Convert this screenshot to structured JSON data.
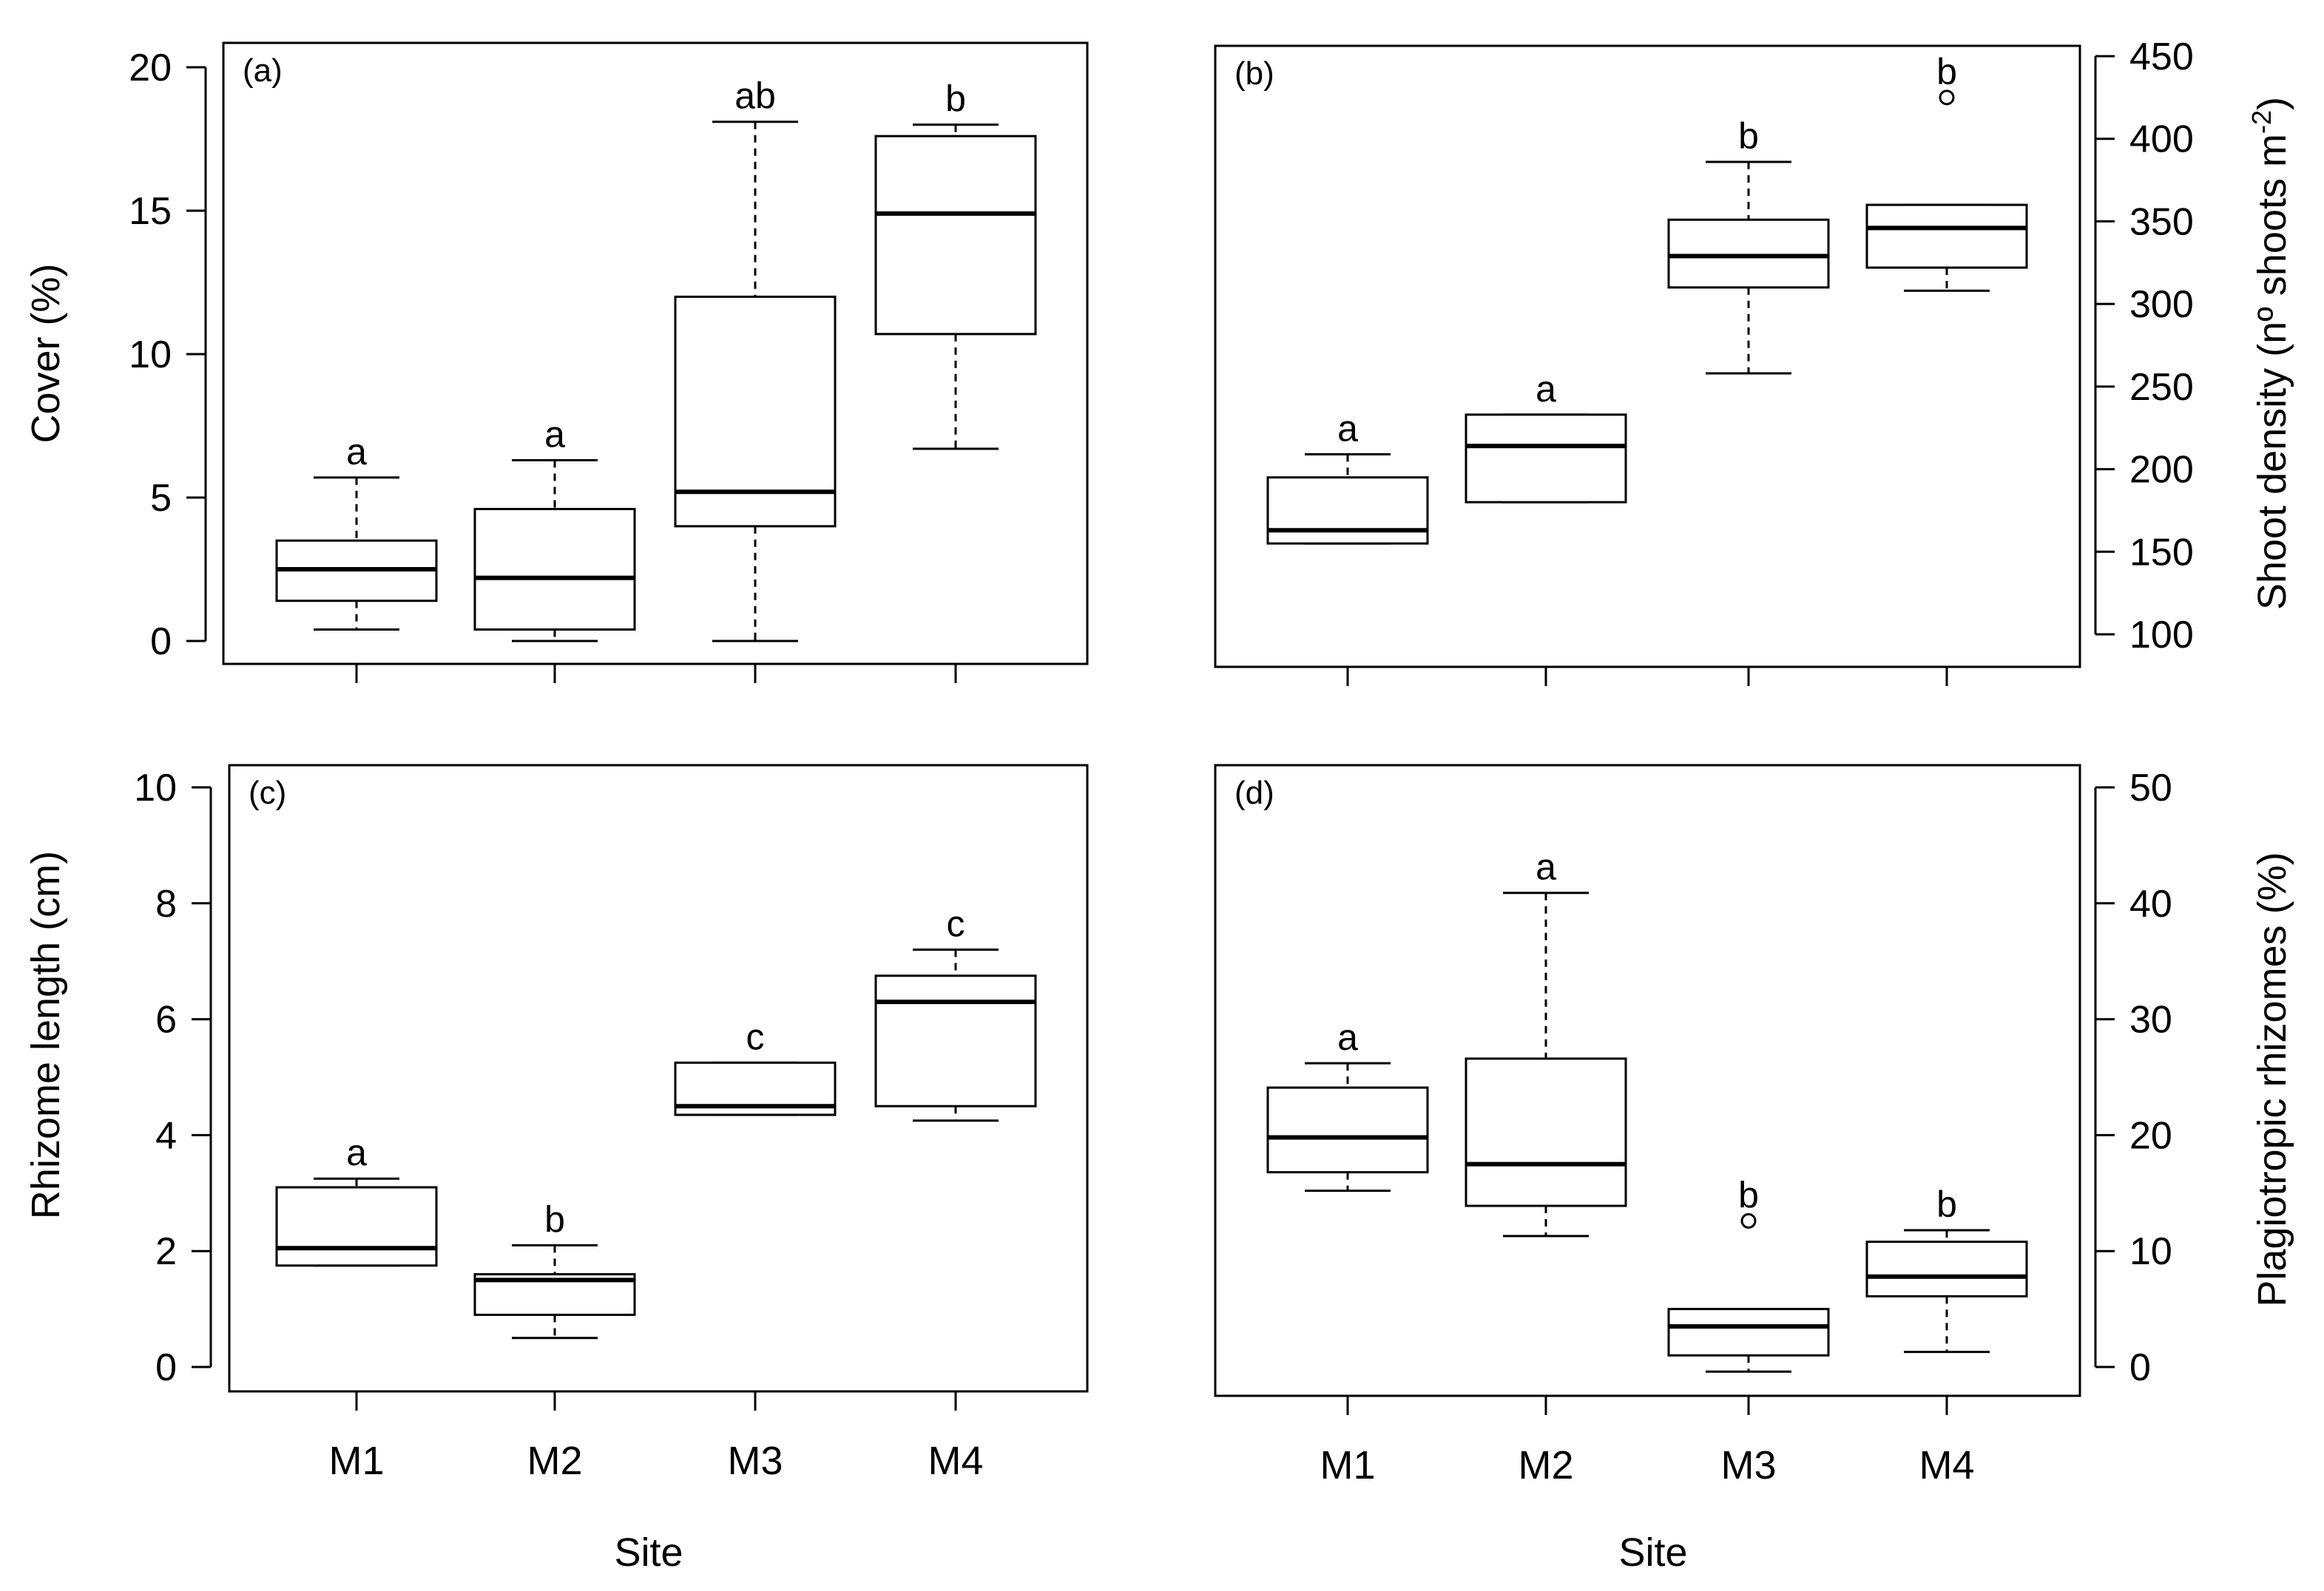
{
  "figure": {
    "x_axis_title": "Site",
    "site_labels": [
      "M1",
      "M2",
      "M3",
      "M4"
    ]
  },
  "chart_data": [
    {
      "panel": "(a)",
      "type": "boxplot",
      "ylabel": "Cover (%)",
      "axis_side": "left",
      "ylim": [
        0,
        20
      ],
      "yticks": [
        0,
        5,
        10,
        15,
        20
      ],
      "categories": [
        "M1",
        "M2",
        "M3",
        "M4"
      ],
      "boxes": [
        {
          "min": 0.4,
          "q1": 1.4,
          "median": 2.5,
          "q3": 3.5,
          "max": 5.7,
          "outliers": [],
          "letter": "a"
        },
        {
          "min": 0.0,
          "q1": 0.4,
          "median": 2.2,
          "q3": 4.6,
          "max": 6.3,
          "outliers": [],
          "letter": "a"
        },
        {
          "min": 0.0,
          "q1": 4.0,
          "median": 5.2,
          "q3": 12.0,
          "max": 18.1,
          "outliers": [],
          "letter": "ab"
        },
        {
          "min": 6.7,
          "q1": 10.7,
          "median": 14.9,
          "q3": 17.6,
          "max": 18.0,
          "outliers": [],
          "letter": "b"
        }
      ]
    },
    {
      "panel": "(b)",
      "type": "boxplot",
      "ylabel": "Shoot density (nº shoots m",
      "ylabel_sup": "-2",
      "ylabel_end": ")",
      "axis_side": "right",
      "ylim": [
        100,
        450
      ],
      "yticks": [
        100,
        150,
        200,
        250,
        300,
        350,
        400,
        450
      ],
      "categories": [
        "M1",
        "M2",
        "M3",
        "M4"
      ],
      "boxes": [
        {
          "min": 155,
          "q1": 155,
          "median": 163,
          "q3": 195,
          "max": 209,
          "outliers": [],
          "letter": "a"
        },
        {
          "min": 180,
          "q1": 180,
          "median": 214,
          "q3": 233,
          "max": 233,
          "outliers": [],
          "letter": "a"
        },
        {
          "min": 258,
          "q1": 310,
          "median": 329,
          "q3": 351,
          "max": 386,
          "outliers": [],
          "letter": "b"
        },
        {
          "min": 308,
          "q1": 322,
          "median": 346,
          "q3": 360,
          "max": 360,
          "outliers": [
            425
          ],
          "letter": "b"
        }
      ]
    },
    {
      "panel": "(c)",
      "type": "boxplot",
      "ylabel": "Rhizome length (cm)",
      "axis_side": "left",
      "ylim": [
        0,
        10
      ],
      "yticks": [
        0,
        2,
        4,
        6,
        8,
        10
      ],
      "categories": [
        "M1",
        "M2",
        "M3",
        "M4"
      ],
      "boxes": [
        {
          "min": 1.75,
          "q1": 1.75,
          "median": 2.05,
          "q3": 3.1,
          "max": 3.25,
          "outliers": [],
          "letter": "a"
        },
        {
          "min": 0.5,
          "q1": 0.9,
          "median": 1.5,
          "q3": 1.6,
          "max": 2.1,
          "outliers": [],
          "letter": "b"
        },
        {
          "min": 4.35,
          "q1": 4.35,
          "median": 4.5,
          "q3": 5.25,
          "max": 5.25,
          "outliers": [],
          "letter": "c"
        },
        {
          "min": 4.25,
          "q1": 4.5,
          "median": 6.3,
          "q3": 6.75,
          "max": 7.2,
          "outliers": [],
          "letter": "c"
        }
      ]
    },
    {
      "panel": "(d)",
      "type": "boxplot",
      "ylabel": "Plagiotropic rhizomes (%)",
      "axis_side": "right",
      "ylim": [
        0,
        50
      ],
      "yticks": [
        0,
        10,
        20,
        30,
        40,
        50
      ],
      "categories": [
        "M1",
        "M2",
        "M3",
        "M4"
      ],
      "boxes": [
        {
          "min": 15.2,
          "q1": 16.8,
          "median": 19.8,
          "q3": 24.1,
          "max": 26.2,
          "outliers": [],
          "letter": "a"
        },
        {
          "min": 11.3,
          "q1": 13.9,
          "median": 17.5,
          "q3": 26.6,
          "max": 40.9,
          "outliers": [],
          "letter": "a"
        },
        {
          "min": -0.4,
          "q1": 1.0,
          "median": 3.5,
          "q3": 5.0,
          "max": 5.0,
          "outliers": [
            12.6
          ],
          "letter": "b"
        },
        {
          "min": 1.3,
          "q1": 6.1,
          "median": 7.8,
          "q3": 10.8,
          "max": 11.8,
          "outliers": [],
          "letter": "b"
        }
      ]
    }
  ]
}
